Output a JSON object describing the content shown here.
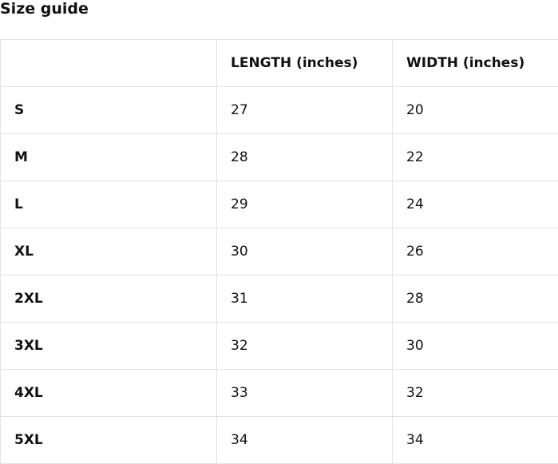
{
  "title": "Size guide",
  "headers": [
    "",
    "LENGTH (inches)",
    "WIDTH (inches)"
  ],
  "rows": [
    [
      "S",
      "27",
      "20"
    ],
    [
      "M",
      "28",
      "22"
    ],
    [
      "L",
      "29",
      "24"
    ],
    [
      "XL",
      "30",
      "26"
    ],
    [
      "2XL",
      "31",
      "28"
    ],
    [
      "3XL",
      "32",
      "30"
    ],
    [
      "4XL",
      "33",
      "32"
    ],
    [
      "5XL",
      "34",
      "34"
    ]
  ]
}
